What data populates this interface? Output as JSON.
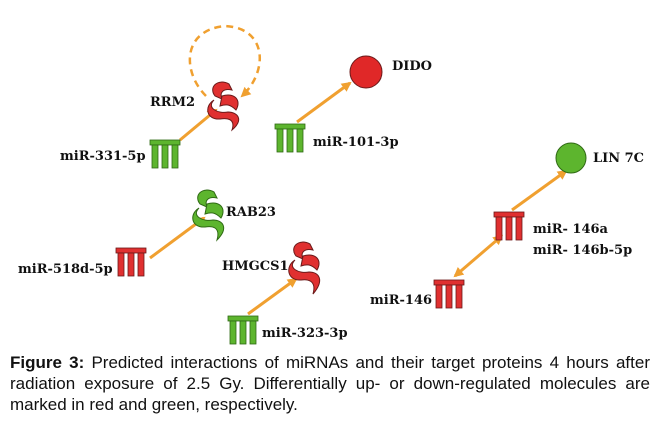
{
  "colors": {
    "up_regulated": "#e03030",
    "down_regulated": "#5db52e",
    "arrow": "#f0a030",
    "outline": "#6b1a1a"
  },
  "nodes": {
    "rrm2": {
      "label": "RRM2",
      "regulation": "up",
      "shape": "protein"
    },
    "dido": {
      "label": "DIDO",
      "regulation": "up",
      "shape": "circle"
    },
    "mir331": {
      "label": "miR-331-5p",
      "regulation": "down",
      "shape": "microrna"
    },
    "mir101": {
      "label": "miR-101-3p",
      "regulation": "down",
      "shape": "microrna"
    },
    "lin7c": {
      "label": "LIN 7C",
      "regulation": "down",
      "shape": "circle"
    },
    "rab23": {
      "label": "RAB23",
      "regulation": "down",
      "shape": "protein"
    },
    "mir146a": {
      "label_line1": "miR- 146a",
      "label_line2": "miR- 146b-5p",
      "regulation": "up",
      "shape": "microrna"
    },
    "mir518": {
      "label": "miR-518d-5p",
      "regulation": "up",
      "shape": "microrna"
    },
    "hmgcs1": {
      "label": "HMGCS1",
      "regulation": "up",
      "shape": "protein"
    },
    "mir146": {
      "label": "miR-146",
      "regulation": "up",
      "shape": "microrna"
    },
    "mir323": {
      "label": "miR-323-3p",
      "regulation": "down",
      "shape": "microrna"
    }
  },
  "edges": [
    {
      "from": "rrm2",
      "to": "rrm2",
      "style": "dashed"
    },
    {
      "from": "mir331",
      "to": "rrm2",
      "style": "solid"
    },
    {
      "from": "mir101",
      "to": "dido",
      "style": "solid"
    },
    {
      "from": "mir518",
      "to": "rab23",
      "style": "solid"
    },
    {
      "from": "mir323",
      "to": "hmgcs1",
      "style": "solid"
    },
    {
      "from": "mir146a",
      "to": "lin7c",
      "style": "solid"
    },
    {
      "from": "mir146a",
      "to": "mir146",
      "style": "solid-bidirectional"
    }
  ],
  "caption": {
    "label": "Figure 3:",
    "text": " Predicted interactions of miRNAs and their target proteins 4 hours after radiation exposure of 2.5 Gy. Differentially up- or down-regulated molecules are marked in red and green, respectively."
  }
}
